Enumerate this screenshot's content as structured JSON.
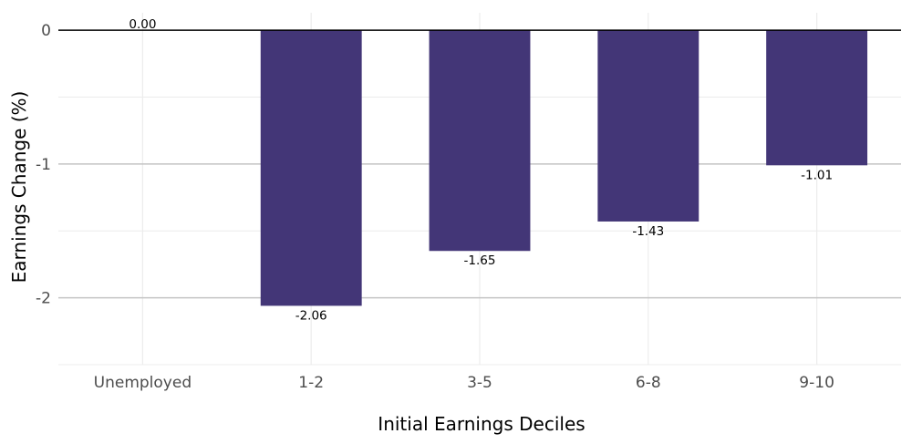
{
  "chart_data": {
    "type": "bar",
    "title": "",
    "xlabel": "Initial Earnings Deciles",
    "ylabel": "Earnings Change (%)",
    "categories": [
      "Unemployed",
      "1-2",
      "3-5",
      "6-8",
      "9-10"
    ],
    "values": [
      0.0,
      -2.06,
      -1.65,
      -1.43,
      -1.01
    ],
    "data_labels": [
      "0.00",
      "-2.06",
      "-1.65",
      "-1.43",
      "-1.01"
    ],
    "ylim": [
      -2.5,
      0.13
    ],
    "yticks": [
      0,
      -1,
      -2
    ],
    "ytick_labels": [
      "0",
      "-1",
      "-2"
    ],
    "grid": true,
    "legend": "none",
    "colors": {
      "bar": "#433677",
      "zero_line": "#000000",
      "major_grid": "#c4c4c4",
      "minor_grid": "#ececec"
    }
  }
}
